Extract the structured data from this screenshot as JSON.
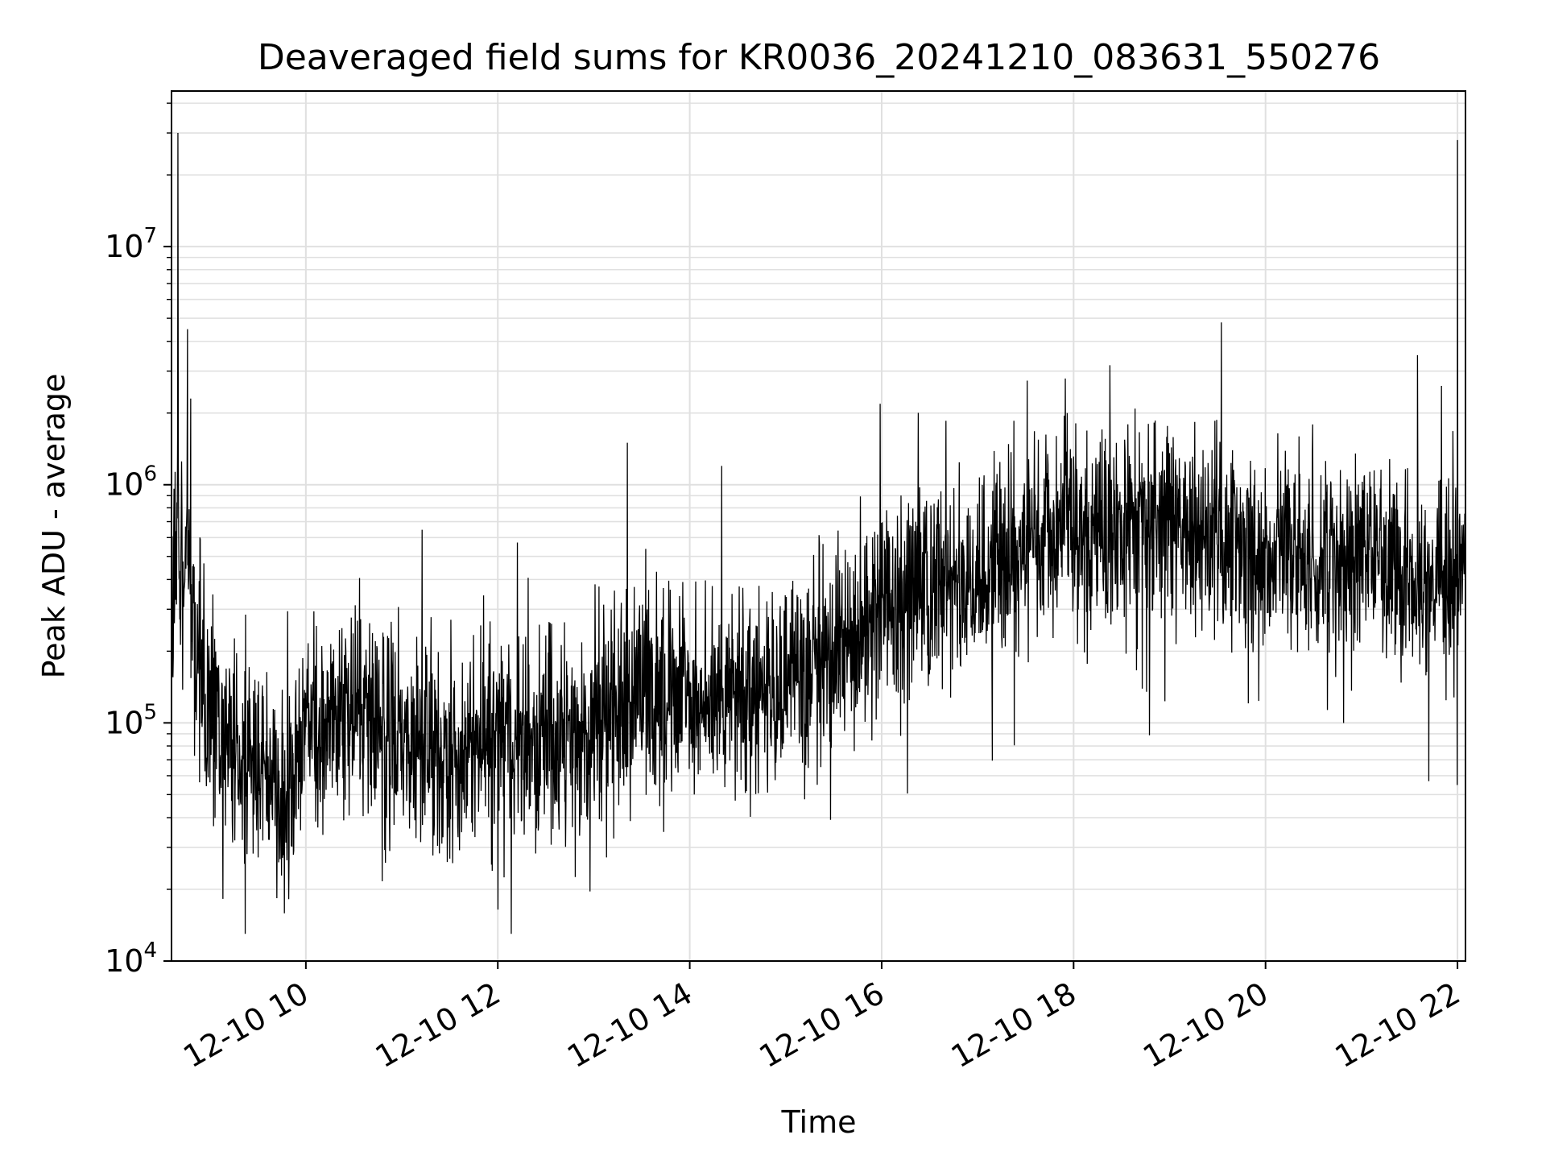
{
  "chart_data": {
    "type": "line",
    "title": "Deaveraged field sums for KR0036_20241210_083631_550276",
    "xlabel": "Time",
    "ylabel": "Peak ADU - average",
    "yscale": "log",
    "ylim": [
      10000,
      45000000
    ],
    "xlim": [
      "2024-12-10 08:36",
      "2024-12-10 22:05"
    ],
    "x_tick_labels": [
      "12-10 10",
      "12-10 12",
      "12-10 14",
      "12-10 16",
      "12-10 18",
      "12-10 20",
      "12-10 22"
    ],
    "y_tick_labels": [
      {
        "base": "10",
        "exp": "4"
      },
      {
        "base": "10",
        "exp": "5"
      },
      {
        "base": "10",
        "exp": "6"
      },
      {
        "base": "10",
        "exp": "7"
      }
    ],
    "grid": true,
    "line_color": "#000000",
    "series": [
      {
        "x": [
          "2024-12-10 08:36",
          "2024-12-10 08:40",
          "2024-12-10 08:45",
          "2024-12-10 08:50",
          "2024-12-10 09:00",
          "2024-12-10 09:15",
          "2024-12-10 09:30",
          "2024-12-10 09:45",
          "2024-12-10 10:00",
          "2024-12-10 10:30",
          "2024-12-10 11:00",
          "2024-12-10 11:30",
          "2024-12-10 12:00",
          "2024-12-10 12:30",
          "2024-12-10 13:00",
          "2024-12-10 13:30",
          "2024-12-10 14:00",
          "2024-12-10 14:30",
          "2024-12-10 15:00",
          "2024-12-10 15:30",
          "2024-12-10 16:00",
          "2024-12-10 16:30",
          "2024-12-10 17:00",
          "2024-12-10 17:30",
          "2024-12-10 18:00",
          "2024-12-10 18:30",
          "2024-12-10 19:00",
          "2024-12-10 19:30",
          "2024-12-10 20:00",
          "2024-12-10 20:30",
          "2024-12-10 21:00",
          "2024-12-10 21:30",
          "2024-12-10 21:45",
          "2024-12-10 22:00",
          "2024-12-10 22:05"
        ],
        "y": [
          400000,
          600000,
          350000,
          250000,
          110000,
          90000,
          60000,
          45000,
          90000,
          110000,
          85000,
          70000,
          90000,
          85000,
          80000,
          140000,
          130000,
          130000,
          150000,
          200000,
          300000,
          380000,
          350000,
          600000,
          650000,
          600000,
          700000,
          600000,
          500000,
          480000,
          500000,
          350000,
          400000,
          450000,
          550000
        ]
      }
    ],
    "spikes": [
      {
        "x": "2024-12-10 08:40",
        "y": 30000000
      },
      {
        "x": "2024-12-10 08:46",
        "y": 4500000
      },
      {
        "x": "2024-12-10 08:48",
        "y": 2300000
      },
      {
        "x": "2024-12-10 13:21",
        "y": 1500000
      },
      {
        "x": "2024-12-10 14:20",
        "y": 1200000
      },
      {
        "x": "2024-12-10 17:56",
        "y": 2000000
      },
      {
        "x": "2024-12-10 21:35",
        "y": 3500000
      },
      {
        "x": "2024-12-10 21:50",
        "y": 2600000
      },
      {
        "x": "2024-12-10 22:00",
        "y": 28000000
      }
    ]
  }
}
